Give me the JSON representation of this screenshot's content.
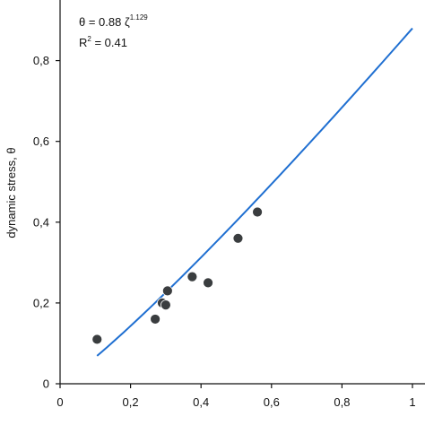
{
  "chart_data": {
    "type": "scatter",
    "title": "",
    "ylabel": "dynamic stress, θ",
    "xlabel": "",
    "xlim": [
      0,
      1
    ],
    "ylim": [
      0,
      0.95
    ],
    "x_ticks": [
      0,
      0.2,
      0.4,
      0.6,
      0.8,
      1
    ],
    "x_tick_labels": [
      "0",
      "0,2",
      "0,4",
      "0,6",
      "0,8",
      "1"
    ],
    "y_ticks": [
      0,
      0.2,
      0.4,
      0.6,
      0.8
    ],
    "y_tick_labels": [
      "0",
      "0,2",
      "0,4",
      "0,6",
      "0,8"
    ],
    "grid": false,
    "colors": {
      "points": "#3a3d3f",
      "fit_line": "#1f6fd1",
      "axis": "#111111"
    },
    "points": [
      {
        "x": 0.105,
        "y": 0.11
      },
      {
        "x": 0.27,
        "y": 0.16
      },
      {
        "x": 0.29,
        "y": 0.2
      },
      {
        "x": 0.3,
        "y": 0.195
      },
      {
        "x": 0.305,
        "y": 0.23
      },
      {
        "x": 0.375,
        "y": 0.265
      },
      {
        "x": 0.42,
        "y": 0.25
      },
      {
        "x": 0.505,
        "y": 0.36
      },
      {
        "x": 0.56,
        "y": 0.425
      }
    ],
    "fit": {
      "coefficient": 0.88,
      "exponent": 1.129,
      "x_range": [
        0.105,
        1.0
      ]
    },
    "annotations": {
      "equation_main": "θ = 0.88 ζ",
      "equation_exp": "1.129",
      "r2_prefix": "R",
      "r2_sup": "2",
      "r2_value": " = 0.41"
    }
  }
}
